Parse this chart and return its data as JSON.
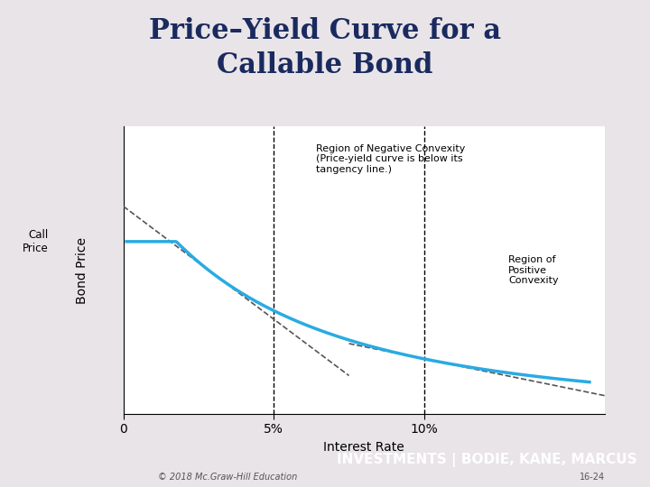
{
  "title_line1": "Price–Yield Curve for a",
  "title_line2": "Callable Bond",
  "title_bg_color": "#ddc8d0",
  "title_text_color": "#1a2a5e",
  "slide_bg_color": "#e8e4e8",
  "plot_bg_color": "#ffffff",
  "xlabel": "Interest Rate",
  "ylabel": "Bond Price",
  "call_price_label": "Call\nPrice",
  "callable_curve_color": "#29abe2",
  "tangent_line_color": "#555555",
  "vline_color": "#000000",
  "footer_bg_color": "#8b1a2e",
  "footer_text": "INVESTMENTS | BODIE, KANE, MARCUS",
  "footer_text_color": "#ffffff",
  "copyright_text": "© 2018 Mc.Graw-Hill Education",
  "page_number": "16-24",
  "annotation_neg_conv": "Region of Negative Convexity\n(Price-yield curve is below its\ntangency line.)",
  "annotation_pos_conv": "Region of\nPositive\nConvexity",
  "xmin": 0.0,
  "xmax": 0.16,
  "ymin": 0.0,
  "ymax": 1.2
}
